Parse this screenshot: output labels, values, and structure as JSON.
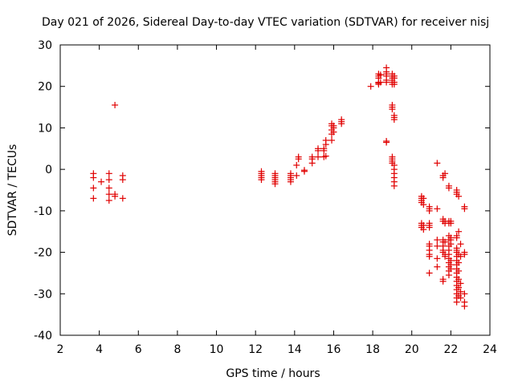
{
  "chart_data": {
    "type": "scatter",
    "title": "Day 021 of 2026, Sidereal Day-to-day VTEC variation (SDTVAR) for receiver nisj",
    "xlabel": "GPS time / hours",
    "ylabel": "SDTVAR / TECUs",
    "xlim": [
      2,
      24
    ],
    "ylim": [
      -40,
      30
    ],
    "xticks": [
      2,
      4,
      6,
      8,
      10,
      12,
      14,
      16,
      18,
      20,
      22,
      24
    ],
    "yticks": [
      -40,
      -30,
      -20,
      -10,
      0,
      10,
      20,
      30
    ],
    "grid": false,
    "marker": "+",
    "color": "#e00000",
    "series": [
      {
        "name": "SDTVAR",
        "points": [
          [
            3.7,
            -1.0
          ],
          [
            3.7,
            -2.0
          ],
          [
            3.7,
            -4.5
          ],
          [
            3.7,
            -7.0
          ],
          [
            4.1,
            -3.0
          ],
          [
            4.5,
            -1.0
          ],
          [
            4.5,
            -2.5
          ],
          [
            4.5,
            -4.5
          ],
          [
            4.5,
            -6.0
          ],
          [
            4.5,
            -7.5
          ],
          [
            4.8,
            15.5
          ],
          [
            4.8,
            -6.5
          ],
          [
            4.8,
            -6.0
          ],
          [
            5.2,
            -1.5
          ],
          [
            5.2,
            -2.5
          ],
          [
            5.2,
            -7.0
          ],
          [
            12.3,
            -0.5
          ],
          [
            12.3,
            -1.0
          ],
          [
            12.3,
            -1.5
          ],
          [
            12.3,
            -2.0
          ],
          [
            12.3,
            -2.5
          ],
          [
            13.0,
            -1.0
          ],
          [
            13.0,
            -1.5
          ],
          [
            13.0,
            -2.0
          ],
          [
            13.0,
            -2.5
          ],
          [
            13.0,
            -3.0
          ],
          [
            13.0,
            -3.5
          ],
          [
            13.8,
            -1.0
          ],
          [
            13.8,
            -1.5
          ],
          [
            13.8,
            -2.0
          ],
          [
            13.8,
            -2.5
          ],
          [
            13.8,
            -3.0
          ],
          [
            14.1,
            -1.5
          ],
          [
            14.1,
            1.0
          ],
          [
            14.2,
            2.5
          ],
          [
            14.2,
            3.0
          ],
          [
            14.5,
            -0.5
          ],
          [
            14.5,
            -0.2
          ],
          [
            14.9,
            2.5
          ],
          [
            14.9,
            3.0
          ],
          [
            14.9,
            1.5
          ],
          [
            15.2,
            3.0
          ],
          [
            15.2,
            4.5
          ],
          [
            15.2,
            5.0
          ],
          [
            15.5,
            3.0
          ],
          [
            15.5,
            4.5
          ],
          [
            15.5,
            5.0
          ],
          [
            15.6,
            6.0
          ],
          [
            15.6,
            7.0
          ],
          [
            15.6,
            3.2
          ],
          [
            15.9,
            7.0
          ],
          [
            15.9,
            8.5
          ],
          [
            15.9,
            9.5
          ],
          [
            15.9,
            10.5
          ],
          [
            15.9,
            11.0
          ],
          [
            16.0,
            9.0
          ],
          [
            16.0,
            10.0
          ],
          [
            16.0,
            10.5
          ],
          [
            16.4,
            11.0
          ],
          [
            16.4,
            11.5
          ],
          [
            16.4,
            12.0
          ],
          [
            17.9,
            20.0
          ],
          [
            18.3,
            20.5
          ],
          [
            18.3,
            21.0
          ],
          [
            18.3,
            22.0
          ],
          [
            18.3,
            22.5
          ],
          [
            18.3,
            23.0
          ],
          [
            18.3,
            20.8
          ],
          [
            18.4,
            21.0
          ],
          [
            18.4,
            22.8
          ],
          [
            18.7,
            24.5
          ],
          [
            18.7,
            23.5
          ],
          [
            18.7,
            23.0
          ],
          [
            18.7,
            22.5
          ],
          [
            18.7,
            21.0
          ],
          [
            18.7,
            21.5
          ],
          [
            18.7,
            6.5
          ],
          [
            18.7,
            6.8
          ],
          [
            19.0,
            23.0
          ],
          [
            19.0,
            22.5
          ],
          [
            19.0,
            22.0
          ],
          [
            19.0,
            21.5
          ],
          [
            19.0,
            21.0
          ],
          [
            19.0,
            20.5
          ],
          [
            19.0,
            15.5
          ],
          [
            19.0,
            15.0
          ],
          [
            19.0,
            14.5
          ],
          [
            19.1,
            22.5
          ],
          [
            19.1,
            22.0
          ],
          [
            19.1,
            21.0
          ],
          [
            19.1,
            20.5
          ],
          [
            19.1,
            13.0
          ],
          [
            19.1,
            12.5
          ],
          [
            19.1,
            12.0
          ],
          [
            19.0,
            3.0
          ],
          [
            19.0,
            2.5
          ],
          [
            19.0,
            2.0
          ],
          [
            19.0,
            1.5
          ],
          [
            19.1,
            1.0
          ],
          [
            19.1,
            0.0
          ],
          [
            19.1,
            -1.0
          ],
          [
            19.1,
            -2.0
          ],
          [
            19.1,
            -3.0
          ],
          [
            19.1,
            -4.0
          ],
          [
            20.5,
            -6.5
          ],
          [
            20.5,
            -7.0
          ],
          [
            20.5,
            -7.5
          ],
          [
            20.5,
            -8.0
          ],
          [
            20.5,
            -13.0
          ],
          [
            20.5,
            -13.5
          ],
          [
            20.5,
            -14.0
          ],
          [
            20.6,
            -7.0
          ],
          [
            20.6,
            -8.5
          ],
          [
            20.6,
            -13.5
          ],
          [
            20.6,
            -14.5
          ],
          [
            20.9,
            -9.0
          ],
          [
            20.9,
            -9.5
          ],
          [
            20.9,
            -10.0
          ],
          [
            20.9,
            -13.0
          ],
          [
            20.9,
            -13.5
          ],
          [
            20.9,
            -14.0
          ],
          [
            20.9,
            -18.0
          ],
          [
            20.9,
            -18.5
          ],
          [
            20.9,
            -19.5
          ],
          [
            20.9,
            -20.5
          ],
          [
            20.9,
            -21.0
          ],
          [
            20.9,
            -25.0
          ],
          [
            21.3,
            1.5
          ],
          [
            21.3,
            -9.5
          ],
          [
            21.3,
            -17.0
          ],
          [
            21.3,
            -18.5
          ],
          [
            21.3,
            -21.5
          ],
          [
            21.3,
            -23.5
          ],
          [
            21.6,
            -1.5
          ],
          [
            21.6,
            -2.0
          ],
          [
            21.6,
            -12.0
          ],
          [
            21.6,
            -12.5
          ],
          [
            21.6,
            -17.0
          ],
          [
            21.6,
            -17.5
          ],
          [
            21.6,
            -18.5
          ],
          [
            21.6,
            -19.5
          ],
          [
            21.6,
            -20.0
          ],
          [
            21.6,
            -26.5
          ],
          [
            21.6,
            -27.0
          ],
          [
            21.7,
            -1.0
          ],
          [
            21.7,
            -12.5
          ],
          [
            21.7,
            -13.0
          ],
          [
            21.7,
            -17.5
          ],
          [
            21.7,
            -20.5
          ],
          [
            21.7,
            -21.0
          ],
          [
            21.9,
            -4.0
          ],
          [
            21.9,
            -4.5
          ],
          [
            21.9,
            -12.5
          ],
          [
            21.9,
            -13.0
          ],
          [
            21.9,
            -16.0
          ],
          [
            21.9,
            -17.0
          ],
          [
            21.9,
            -18.5
          ],
          [
            21.9,
            -19.5
          ],
          [
            21.9,
            -20.5
          ],
          [
            21.9,
            -21.5
          ],
          [
            21.9,
            -22.5
          ],
          [
            21.9,
            -23.5
          ],
          [
            21.9,
            -24.5
          ],
          [
            21.9,
            -25.5
          ],
          [
            22.0,
            -12.5
          ],
          [
            22.0,
            -13.0
          ],
          [
            22.0,
            -16.5
          ],
          [
            22.0,
            -17.0
          ],
          [
            22.0,
            -18.0
          ],
          [
            22.0,
            -22.0
          ],
          [
            22.0,
            -23.0
          ],
          [
            22.0,
            -24.0
          ],
          [
            22.3,
            -5.0
          ],
          [
            22.3,
            -5.5
          ],
          [
            22.3,
            -6.0
          ],
          [
            22.4,
            -6.5
          ],
          [
            22.3,
            -16.0
          ],
          [
            22.3,
            -16.5
          ],
          [
            22.3,
            -19.0
          ],
          [
            22.3,
            -19.5
          ],
          [
            22.3,
            -20.0
          ],
          [
            22.3,
            -21.0
          ],
          [
            22.3,
            -22.0
          ],
          [
            22.3,
            -23.0
          ],
          [
            22.3,
            -24.0
          ],
          [
            22.3,
            -25.0
          ],
          [
            22.3,
            -26.0
          ],
          [
            22.3,
            -27.0
          ],
          [
            22.3,
            -28.0
          ],
          [
            22.3,
            -29.0
          ],
          [
            22.3,
            -30.0
          ],
          [
            22.3,
            -31.0
          ],
          [
            22.3,
            -32.0
          ],
          [
            22.4,
            -15.0
          ],
          [
            22.4,
            -20.5
          ],
          [
            22.4,
            -22.5
          ],
          [
            22.4,
            -24.5
          ],
          [
            22.4,
            -26.5
          ],
          [
            22.4,
            -28.5
          ],
          [
            22.4,
            -30.5
          ],
          [
            22.5,
            -18.0
          ],
          [
            22.5,
            -21.0
          ],
          [
            22.5,
            -27.5
          ],
          [
            22.5,
            -29.5
          ],
          [
            22.5,
            -31.0
          ],
          [
            22.7,
            -9.0
          ],
          [
            22.7,
            -9.5
          ],
          [
            22.7,
            -20.0
          ],
          [
            22.7,
            -20.5
          ],
          [
            22.7,
            -30.0
          ],
          [
            22.7,
            -32.0
          ],
          [
            22.7,
            -33.0
          ]
        ]
      }
    ]
  }
}
